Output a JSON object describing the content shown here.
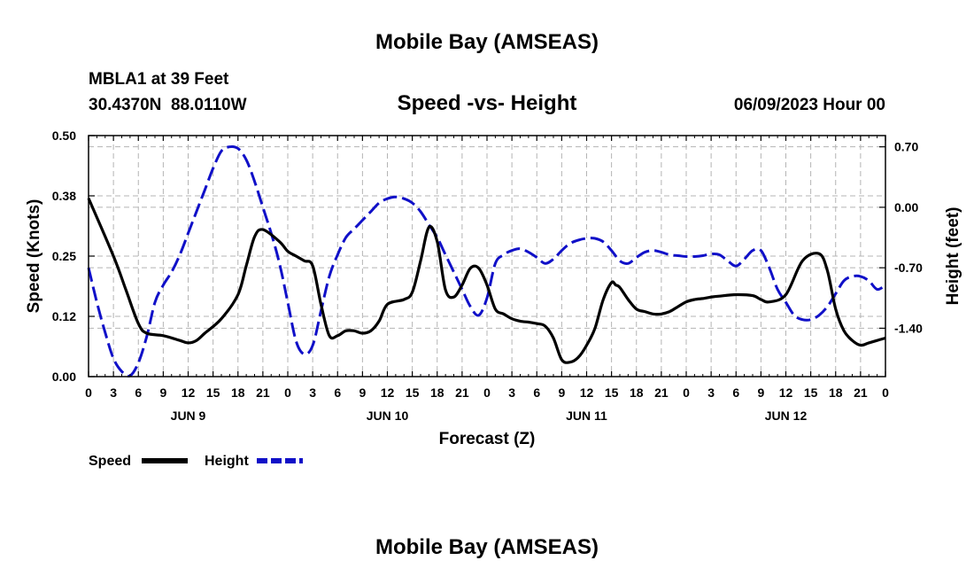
{
  "header": {
    "title": "Mobile Bay (AMSEAS)",
    "station": "MBLA1 at 39 Feet",
    "coords": "30.4370N  88.0110W",
    "subtitle": "Speed -vs- Height",
    "datetime": "06/09/2023 Hour 00"
  },
  "footer": {
    "title": "Mobile Bay (AMSEAS)"
  },
  "legend": {
    "speed_label": "Speed",
    "height_label": "Height"
  },
  "colors": {
    "speed": "#000000",
    "height": "#1010c8",
    "grid": "#b4b4b4"
  },
  "chart_data": {
    "type": "line",
    "title": "Speed -vs- Height",
    "xlabel": "Forecast (Z)",
    "ylabel": "Speed (Knots)",
    "y2label": "Height (feet)",
    "xlim": [
      0,
      96
    ],
    "ylim": [
      0,
      0.5
    ],
    "y2lim": [
      -1.96,
      0.83
    ],
    "x_tick_labels": [
      "0",
      "3",
      "6",
      "9",
      "12",
      "15",
      "18",
      "21",
      "0",
      "3",
      "6",
      "9",
      "12",
      "15",
      "18",
      "21",
      "0",
      "3",
      "6",
      "9",
      "12",
      "15",
      "18",
      "21",
      "0",
      "3",
      "6",
      "9",
      "12",
      "15",
      "18",
      "21",
      "0"
    ],
    "y_ticks": [
      0.0,
      0.125,
      0.25,
      0.375,
      0.5
    ],
    "y_tick_labels": [
      "0.00",
      "0.12",
      "0.25",
      "0.38",
      "0.50"
    ],
    "y2_ticks": [
      0.7,
      0.0,
      -0.7,
      -1.4
    ],
    "y2_tick_labels": [
      "0.70",
      "0.00",
      "-0.70",
      "-1.40"
    ],
    "day_labels": [
      {
        "x": 12,
        "label": "JUN 9"
      },
      {
        "x": 36,
        "label": "JUN 10"
      },
      {
        "x": 60,
        "label": "JUN 11"
      },
      {
        "x": 84,
        "label": "JUN 12"
      }
    ],
    "series": [
      {
        "name": "Speed",
        "axis": "left",
        "x": [
          0,
          3,
          4.5,
          6,
          7,
          9,
          11,
          12,
          13,
          14,
          16,
          18,
          19,
          20,
          21,
          23,
          24,
          25,
          26,
          27,
          28,
          29,
          30,
          31,
          32,
          33,
          34,
          35,
          36,
          38,
          39,
          40,
          41,
          42,
          43,
          44,
          45,
          46,
          47,
          48,
          49,
          50,
          51,
          52,
          53,
          54,
          55,
          56,
          57,
          58,
          59,
          60,
          61,
          62,
          63,
          63.5,
          64,
          65,
          66,
          67,
          68,
          69,
          70,
          71,
          72,
          73,
          74,
          75,
          76,
          78,
          80,
          81,
          82,
          84,
          86,
          88,
          89,
          90,
          91,
          92,
          93,
          94,
          95,
          96
        ],
        "values": [
          0.37,
          0.25,
          0.18,
          0.11,
          0.09,
          0.085,
          0.075,
          0.07,
          0.075,
          0.09,
          0.12,
          0.17,
          0.23,
          0.29,
          0.305,
          0.28,
          0.26,
          0.25,
          0.24,
          0.23,
          0.15,
          0.085,
          0.085,
          0.095,
          0.095,
          0.09,
          0.095,
          0.115,
          0.15,
          0.16,
          0.175,
          0.24,
          0.31,
          0.28,
          0.18,
          0.165,
          0.19,
          0.225,
          0.225,
          0.19,
          0.14,
          0.13,
          0.12,
          0.115,
          0.113,
          0.11,
          0.105,
          0.08,
          0.035,
          0.03,
          0.04,
          0.065,
          0.1,
          0.16,
          0.195,
          0.19,
          0.185,
          0.16,
          0.14,
          0.135,
          0.13,
          0.13,
          0.135,
          0.145,
          0.155,
          0.16,
          0.162,
          0.165,
          0.167,
          0.17,
          0.168,
          0.16,
          0.155,
          0.17,
          0.24,
          0.255,
          0.22,
          0.14,
          0.095,
          0.075,
          0.065,
          0.07,
          0.075,
          0.08
        ]
      },
      {
        "name": "Height",
        "axis": "right",
        "x": [
          0,
          1,
          2,
          3,
          4,
          5,
          6,
          7,
          8,
          9,
          10,
          11,
          12,
          13,
          14,
          15,
          16,
          17,
          18,
          19,
          20,
          21,
          22,
          23,
          24,
          25,
          26,
          27,
          28,
          29,
          30,
          31,
          32,
          33,
          34,
          35,
          36,
          37,
          38,
          39,
          40,
          41,
          42,
          43,
          44,
          45,
          46,
          47,
          48,
          49,
          50,
          51,
          52,
          53,
          54,
          55,
          56,
          57,
          58,
          59,
          60,
          61,
          62,
          63,
          64,
          65,
          66,
          67,
          68,
          69,
          70,
          71,
          72,
          73,
          74,
          75,
          76,
          77,
          78,
          79,
          80,
          81,
          82,
          83,
          84,
          85,
          86,
          87,
          88,
          89,
          90,
          91,
          92,
          93,
          94,
          95,
          96
        ],
        "values": [
          -0.7,
          -1.1,
          -1.45,
          -1.75,
          -1.9,
          -1.95,
          -1.8,
          -1.5,
          -1.1,
          -0.9,
          -0.75,
          -0.55,
          -0.3,
          -0.05,
          0.2,
          0.45,
          0.65,
          0.7,
          0.68,
          0.55,
          0.3,
          0.0,
          -0.3,
          -0.65,
          -1.1,
          -1.55,
          -1.7,
          -1.6,
          -1.2,
          -0.8,
          -0.55,
          -0.35,
          -0.25,
          -0.15,
          -0.05,
          0.05,
          0.1,
          0.12,
          0.1,
          0.05,
          -0.05,
          -0.2,
          -0.35,
          -0.55,
          -0.75,
          -0.95,
          -1.15,
          -1.25,
          -1.05,
          -0.65,
          -0.55,
          -0.5,
          -0.48,
          -0.52,
          -0.58,
          -0.65,
          -0.6,
          -0.5,
          -0.42,
          -0.38,
          -0.36,
          -0.36,
          -0.4,
          -0.5,
          -0.62,
          -0.65,
          -0.58,
          -0.52,
          -0.5,
          -0.52,
          -0.55,
          -0.56,
          -0.57,
          -0.57,
          -0.56,
          -0.54,
          -0.55,
          -0.62,
          -0.68,
          -0.6,
          -0.5,
          -0.5,
          -0.7,
          -0.95,
          -1.1,
          -1.25,
          -1.3,
          -1.3,
          -1.25,
          -1.15,
          -1.0,
          -0.85,
          -0.8,
          -0.8,
          -0.85,
          -0.95,
          -0.9
        ]
      }
    ]
  }
}
